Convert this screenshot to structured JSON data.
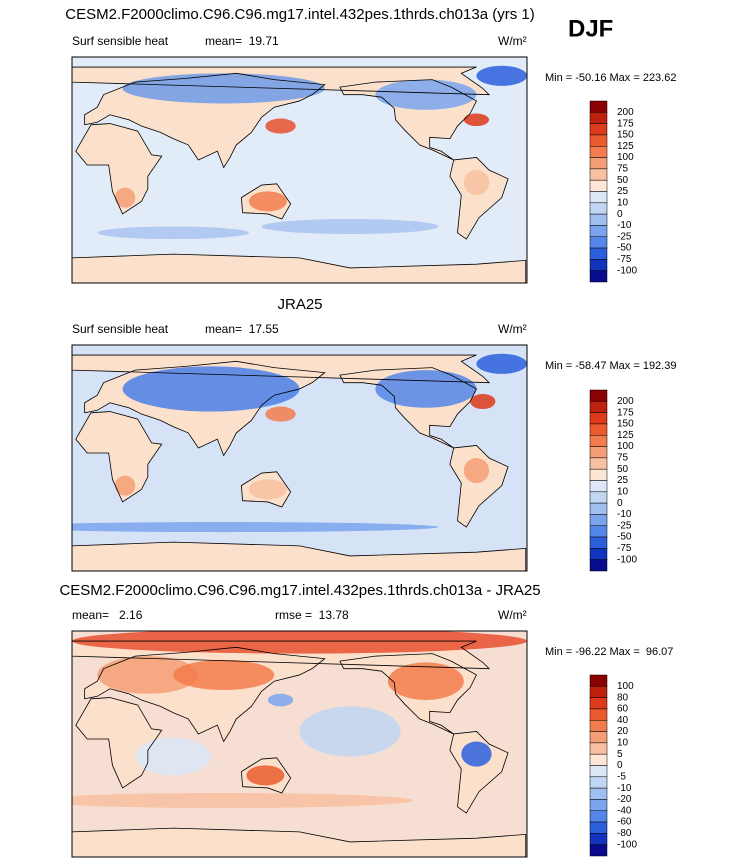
{
  "season": "DJF",
  "panels": [
    {
      "title": "CESM2.F2000climo.C96.C96.mg17.intel.432pes.1thrds.ch013a (yrs 1)",
      "left_label": "Surf sensible heat",
      "center_label": "mean=  19.71",
      "units": "W/m²",
      "range_label": "Min = -50.16 Max = 223.62",
      "colorbar": {
        "levels": [
          200,
          175,
          150,
          125,
          100,
          75,
          50,
          25,
          10,
          0,
          -10,
          -25,
          -50,
          -75,
          -100
        ],
        "colors": [
          "#8b0000",
          "#c0200e",
          "#dc3a1a",
          "#ea5a2c",
          "#f27c4c",
          "#f59d76",
          "#f8bfa0",
          "#fde6d5",
          "#dce8f7",
          "#c0d6f2",
          "#9ebff0",
          "#7aa4ee",
          "#5485e8",
          "#2c5fdc",
          "#1034c0",
          "#0a0a8c"
        ]
      }
    },
    {
      "title": "JRA25",
      "left_label": "Surf sensible heat",
      "center_label": "mean=  17.55",
      "units": "W/m²",
      "range_label": "Min = -58.47 Max = 192.39",
      "colorbar": {
        "levels": [
          200,
          175,
          150,
          125,
          100,
          75,
          50,
          25,
          10,
          0,
          -10,
          -25,
          -50,
          -75,
          -100
        ],
        "colors": [
          "#8b0000",
          "#c0200e",
          "#dc3a1a",
          "#ea5a2c",
          "#f27c4c",
          "#f59d76",
          "#f8bfa0",
          "#fde6d5",
          "#dce8f7",
          "#c0d6f2",
          "#9ebff0",
          "#7aa4ee",
          "#5485e8",
          "#2c5fdc",
          "#1034c0",
          "#0a0a8c"
        ]
      }
    },
    {
      "title": "CESM2.F2000climo.C96.C96.mg17.intel.432pes.1thrds.ch013a - JRA25",
      "left_label": "mean=   2.16",
      "center_label": "rmse =  13.78",
      "units": "W/m²",
      "range_label": "Min = -96.22 Max =  96.07",
      "colorbar": {
        "levels": [
          100,
          80,
          60,
          40,
          20,
          10,
          5,
          0,
          -5,
          -10,
          -20,
          -40,
          -60,
          -80,
          -100
        ],
        "colors": [
          "#8b0000",
          "#c0200e",
          "#dc3a1a",
          "#ea5a2c",
          "#f27c4c",
          "#f59d76",
          "#f8bfa0",
          "#fde6d5",
          "#dce8f7",
          "#c0d6f2",
          "#9ebff0",
          "#7aa4ee",
          "#5485e8",
          "#2c5fdc",
          "#1034c0",
          "#0a0a8c"
        ]
      }
    }
  ]
}
